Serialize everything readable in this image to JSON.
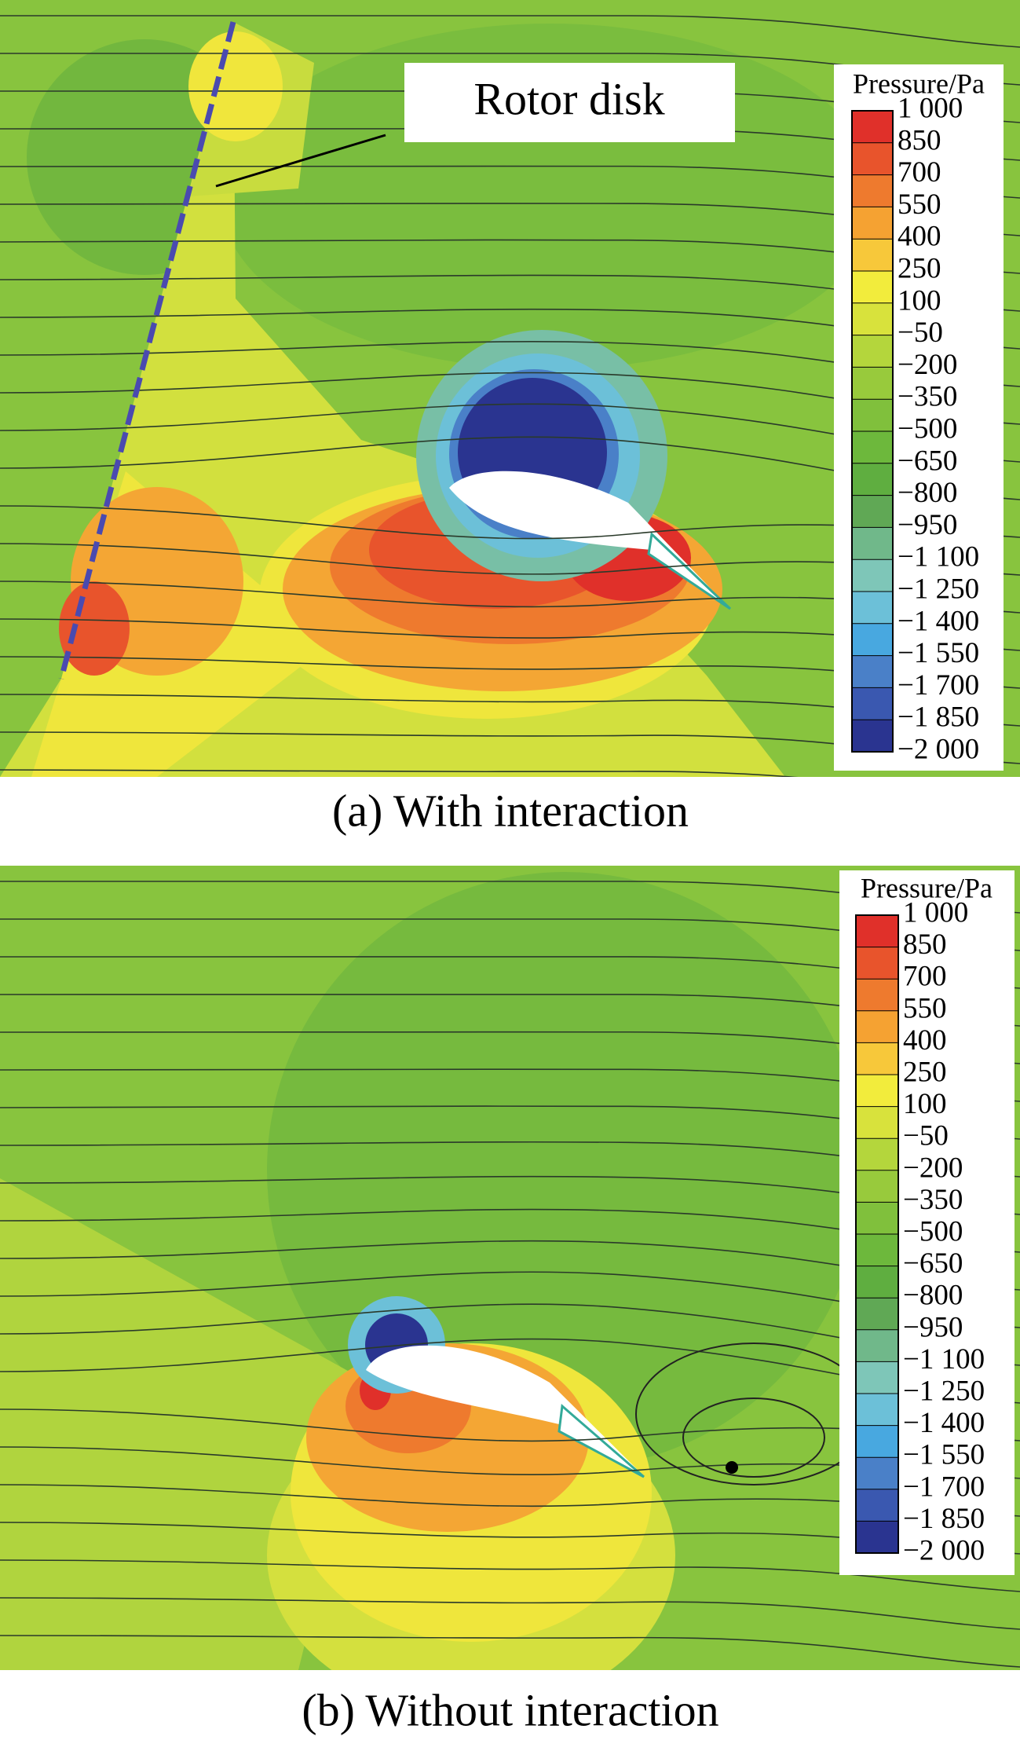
{
  "panels": [
    {
      "caption": "(a) With interaction",
      "annotation": "Rotor disk",
      "legend": {
        "title": "Pressure/Pa",
        "labels": [
          "1 000",
          "850",
          "700",
          "550",
          "400",
          "250",
          "100",
          "−50",
          "−200",
          "−350",
          "−500",
          "−650",
          "−800",
          "−950",
          "−1 100",
          "−1 250",
          "−1 400",
          "−1 550",
          "−1 700",
          "−1 850",
          "−2 000"
        ]
      }
    },
    {
      "caption": "(b) Without interaction",
      "legend": {
        "title": "Pressure/Pa",
        "labels": [
          "1 000",
          "850",
          "700",
          "550",
          "400",
          "250",
          "100",
          "−50",
          "−200",
          "−350",
          "−500",
          "−650",
          "−800",
          "−950",
          "−1 100",
          "−1 250",
          "−1 400",
          "−1 550",
          "−1 700",
          "−1 850",
          "−2 000"
        ]
      }
    }
  ]
}
